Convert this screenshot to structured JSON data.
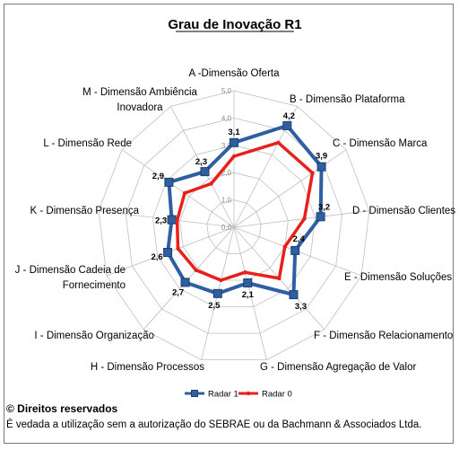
{
  "chart_data": {
    "type": "radar",
    "title": "Grau de Inovação R1",
    "categories": [
      "A -Dimensão Oferta",
      "B - Dimensão Plataforma",
      "C - Dimensão Marca",
      "D - Dimensão Clientes",
      "E - Dimensão Soluções",
      "F - Dimensão Relacionamento",
      "G - Dimensão Agregação de Valor",
      "H - Dimensão Processos",
      "I - Dimensão Organização",
      "J - Dimensão Cadeia de Fornecimento",
      "K - Dimensão Presença",
      "L - Dimensão Rede",
      "M - Dimensão Ambiência Inovadora"
    ],
    "axis_ticks": [
      "0,0",
      "1,0",
      "2,0",
      "3,0",
      "4,0",
      "5,0"
    ],
    "rlim": [
      0,
      5
    ],
    "series": [
      {
        "name": "Radar 1",
        "color": "#2e5fa3",
        "values": [
          3.1,
          4.2,
          3.9,
          3.2,
          2.4,
          3.3,
          2.1,
          2.5,
          2.7,
          2.6,
          2.3,
          2.9,
          2.3
        ],
        "value_labels": [
          "3,1",
          "4,2",
          "3,9",
          "3,2",
          "2,4",
          "3,3",
          "2,1",
          "2,5",
          "2,7",
          "2,6",
          "2,3",
          "2,9",
          "2,3"
        ]
      },
      {
        "name": "Radar 0",
        "color": "#e8201c",
        "values": [
          2.6,
          3.5,
          3.5,
          2.6,
          2.0,
          2.5,
          1.7,
          2.0,
          2.1,
          2.2,
          2.1,
          2.2,
          1.8
        ]
      }
    ],
    "legend_position": "bottom"
  },
  "footer": {
    "copyright": "© Direitos reservados",
    "note": "É vedada a utilização sem a autorização do SEBRAE ou da Bachmann & Associados Ltda."
  }
}
